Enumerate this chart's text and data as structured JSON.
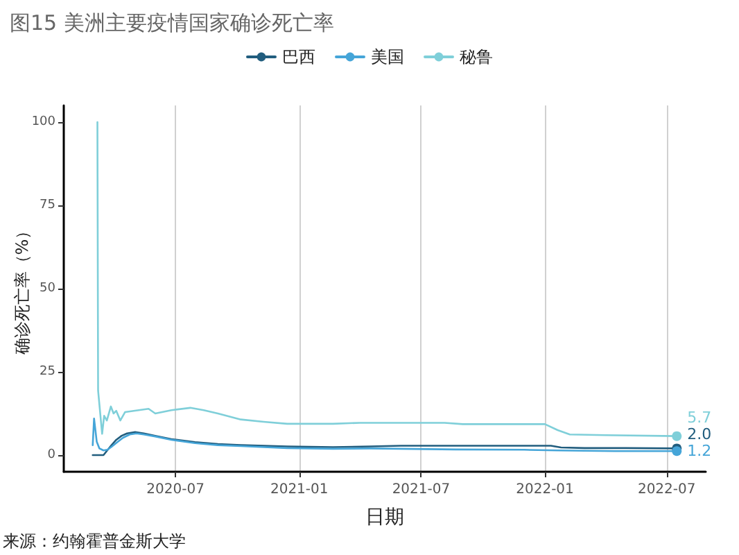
{
  "chart_data": {
    "type": "line",
    "title": "图15 美洲主要疫情国家确诊死亡率",
    "xlabel": "日期",
    "ylabel": "确诊死亡率（%）",
    "annotations": [
      "来源：约翰霍普金斯大学"
    ],
    "xlim": [
      "2020-01-17",
      "2022-08-28"
    ],
    "xticks": [
      "2020-07",
      "2021-01",
      "2021-07",
      "2022-01",
      "2022-07"
    ],
    "ylim": [
      -5,
      105
    ],
    "yticks": [
      0,
      25,
      50,
      75,
      100
    ],
    "grid": "x",
    "legend": "top",
    "series": [
      {
        "name": "巴西",
        "color": "#215d7e",
        "x": [
          "2020-02-29",
          "2020-03-08",
          "2020-03-16",
          "2020-03-22",
          "2020-03-28",
          "2020-04-04",
          "2020-04-12",
          "2020-04-20",
          "2020-05-02",
          "2020-05-15",
          "2020-06-01",
          "2020-06-25",
          "2020-07-30",
          "2020-09-02",
          "2020-10-06",
          "2020-12-14",
          "2021-02-20",
          "2021-04-16",
          "2021-06-01",
          "2021-08-21",
          "2021-11-01",
          "2022-01-10",
          "2022-01-25",
          "2022-03-01",
          "2022-05-01",
          "2022-07-16"
        ],
        "values": [
          0,
          0,
          0,
          1.5,
          3.0,
          4.6,
          5.8,
          6.5,
          6.9,
          6.5,
          5.8,
          4.8,
          3.9,
          3.3,
          3.0,
          2.6,
          2.4,
          2.6,
          2.8,
          2.8,
          2.8,
          2.8,
          2.3,
          2.1,
          2.1,
          2.0
        ],
        "value_labels": [
          null,
          null,
          null,
          null,
          null,
          null,
          null,
          null,
          null,
          null,
          null,
          null,
          null,
          null,
          null,
          null,
          null,
          null,
          null,
          null,
          null,
          null,
          null,
          null,
          null,
          "2.0"
        ]
      },
      {
        "name": "美国",
        "color": "#45a5d8",
        "x": [
          "2020-02-29",
          "2020-03-02",
          "2020-03-06",
          "2020-03-10",
          "2020-03-16",
          "2020-03-22",
          "2020-03-28",
          "2020-04-05",
          "2020-04-14",
          "2020-04-24",
          "2020-05-04",
          "2020-05-15",
          "2020-06-01",
          "2020-06-25",
          "2020-07-30",
          "2020-09-02",
          "2020-10-06",
          "2020-12-14",
          "2021-02-20",
          "2021-04-16",
          "2021-08-21",
          "2021-12-01",
          "2022-01-20",
          "2022-03-01",
          "2022-04-15",
          "2022-07-16"
        ],
        "values": [
          3.0,
          11.0,
          4.0,
          2.0,
          1.4,
          1.6,
          2.5,
          3.8,
          5.2,
          6.2,
          6.5,
          6.2,
          5.6,
          4.6,
          3.6,
          3.0,
          2.7,
          2.1,
          1.9,
          2.0,
          1.7,
          1.6,
          1.4,
          1.3,
          1.2,
          1.2
        ],
        "value_labels": [
          null,
          null,
          null,
          null,
          null,
          null,
          null,
          null,
          null,
          null,
          null,
          null,
          null,
          null,
          null,
          null,
          null,
          null,
          null,
          null,
          null,
          null,
          null,
          null,
          null,
          "1.2"
        ]
      },
      {
        "name": "秘鲁",
        "color": "#7fcfd9",
        "x": [
          "2020-03-07",
          "2020-03-08",
          "2020-03-14",
          "2020-03-17",
          "2020-03-21",
          "2020-03-27",
          "2020-03-31",
          "2020-04-04",
          "2020-04-10",
          "2020-04-17",
          "2020-05-22",
          "2020-06-01",
          "2020-06-25",
          "2020-07-23",
          "2020-08-12",
          "2020-09-02",
          "2020-10-06",
          "2020-11-09",
          "2020-12-14",
          "2021-02-20",
          "2021-04-01",
          "2021-08-05",
          "2021-09-01",
          "2022-01-01",
          "2022-01-20",
          "2022-02-07",
          "2022-04-01",
          "2022-07-16"
        ],
        "values": [
          100,
          19.4,
          6.4,
          11.8,
          10.4,
          14.6,
          12.5,
          13.3,
          10.4,
          12.9,
          13.9,
          12.5,
          13.5,
          14.2,
          13.5,
          12.5,
          10.7,
          10.0,
          9.4,
          9.4,
          9.7,
          9.7,
          9.3,
          9.3,
          7.5,
          6.2,
          6.0,
          5.7
        ],
        "value_labels": [
          null,
          null,
          null,
          null,
          null,
          null,
          null,
          null,
          null,
          null,
          null,
          null,
          null,
          null,
          null,
          null,
          null,
          null,
          null,
          null,
          null,
          null,
          null,
          null,
          null,
          null,
          null,
          "5.7"
        ]
      }
    ]
  }
}
